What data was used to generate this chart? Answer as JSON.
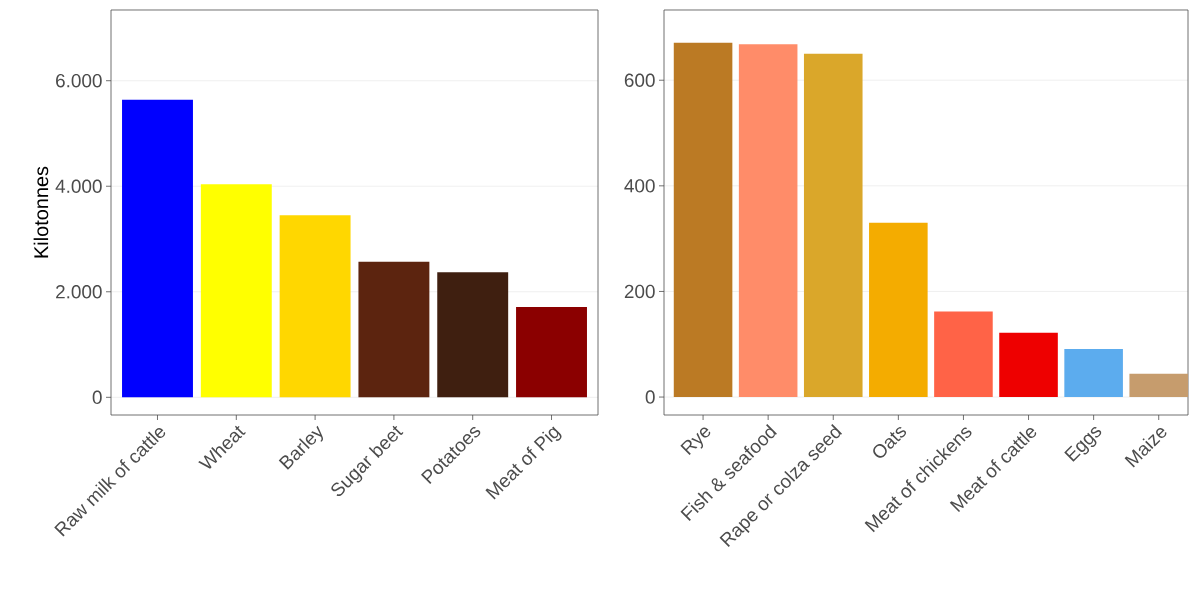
{
  "chart_data": [
    {
      "type": "bar",
      "ylabel": "Kilotonnes",
      "categories": [
        "Raw milk of cattle",
        "Wheat",
        "Barley",
        "Sugar beet",
        "Potatoes",
        "Meat of Pig"
      ],
      "values": [
        5640,
        4040,
        3450,
        2570,
        2370,
        1710
      ],
      "colors": [
        "#0000ff",
        "#ffff00",
        "#ffd700",
        "#5c240f",
        "#3f1f10",
        "#8b0000"
      ],
      "ylim": [
        -335,
        7340
      ],
      "yticks": [
        0,
        {
          "value": 2000,
          "label": "2.000"
        },
        {
          "value": 4000,
          "label": "4.000"
        },
        {
          "value": 6000,
          "label": "6.000"
        }
      ],
      "grid": "y"
    },
    {
      "type": "bar",
      "categories": [
        "Rye",
        "Fish & seafood",
        "Rape or colza seed",
        "Oats",
        "Meat of chickens",
        "Meat of cattle",
        "Eggs",
        "Maize"
      ],
      "values": [
        671,
        668,
        650,
        330,
        162,
        122,
        91,
        44
      ],
      "colors": [
        "#bb7a24",
        "#ff8c69",
        "#daa72a",
        "#f4ac00",
        "#ff6347",
        "#ee0000",
        "#5cacee",
        "#c69c6d"
      ],
      "ylim": [
        -34,
        733
      ],
      "yticks": [
        0,
        200,
        400,
        600
      ],
      "grid": "y"
    }
  ]
}
